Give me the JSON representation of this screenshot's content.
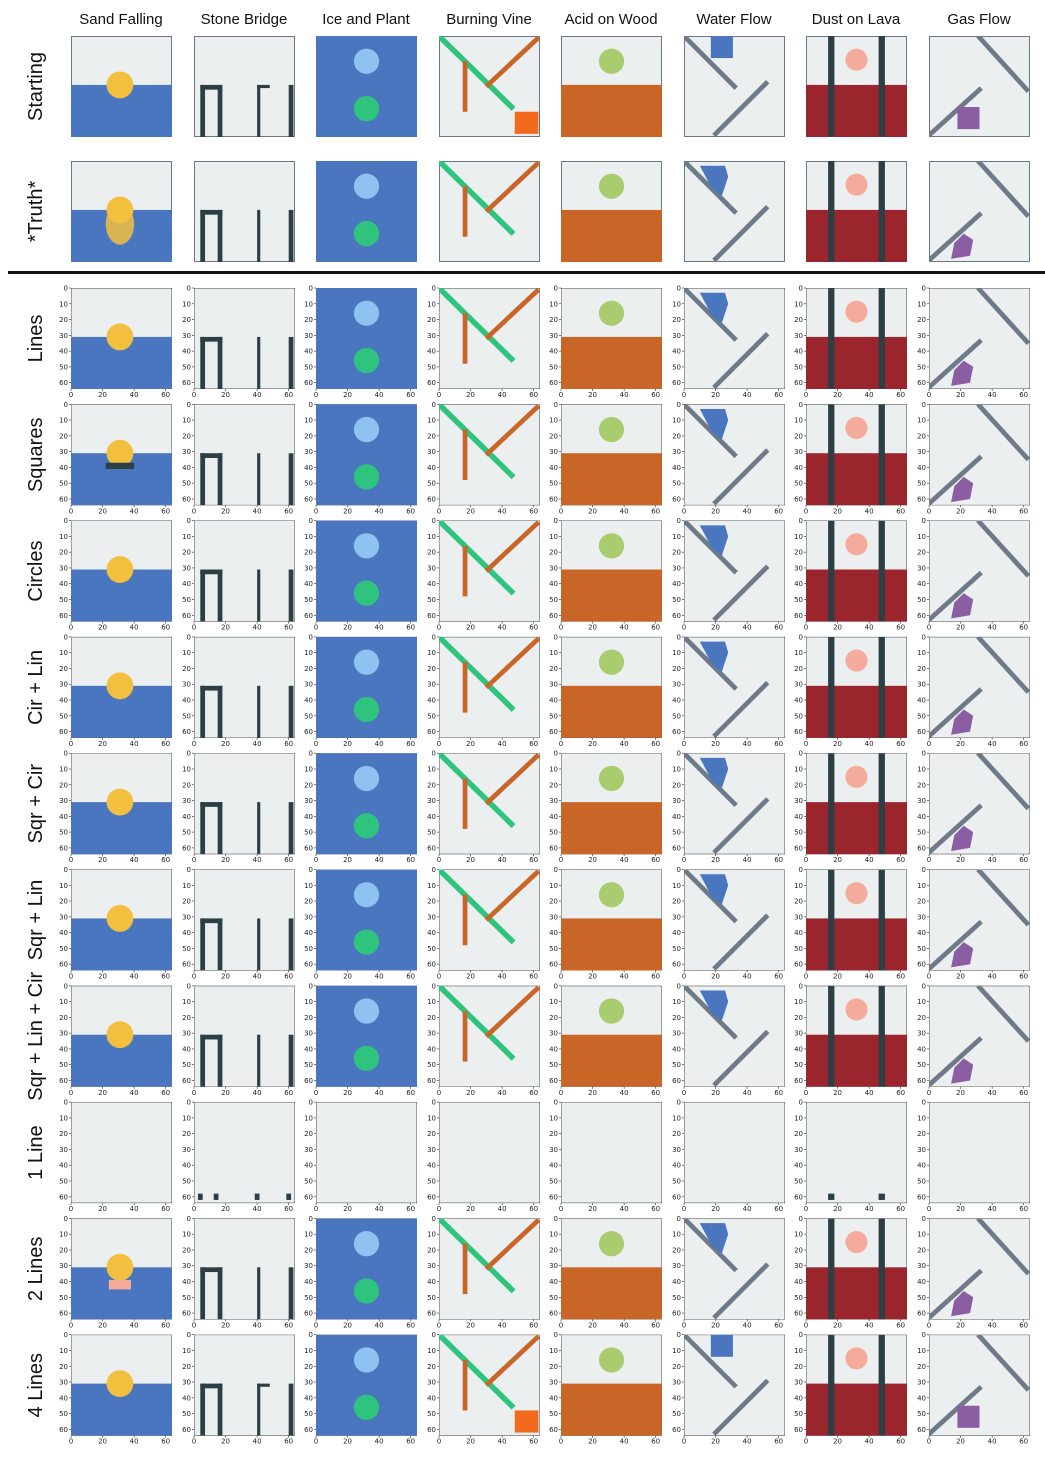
{
  "chart_data": {
    "type": "image-grid",
    "columns": [
      "Sand Falling",
      "Stone Bridge",
      "Ice and Plant",
      "Burning Vine",
      "Acid on Wood",
      "Water Flow",
      "Dust on Lava",
      "Gas Flow"
    ],
    "reference_rows": [
      "Starting",
      "*Truth*"
    ],
    "model_rows": [
      "Lines",
      "Squares",
      "Circles",
      "Cir + Lin",
      "Sqr + Cir",
      "Sqr + Lin",
      "Sqr + Lin + Cir",
      "1 Line",
      "2 Lines",
      "4 Lines"
    ],
    "x_ticks": [
      "0",
      "20",
      "40",
      "60"
    ],
    "y_ticks": [
      "0",
      "10",
      "20",
      "30",
      "40",
      "50",
      "60"
    ],
    "grid_size": 64,
    "colors": {
      "background": "#eceff0",
      "water": "#4a76bf",
      "sand": "#f2bf3e",
      "stone": "#2b3f45",
      "ice": "#8ec2f0",
      "plant": "#2ec47e",
      "wood": "#c96527",
      "fire": "#f26a1b",
      "acid": "#a8cc6e",
      "metal": "#6e7a88",
      "dust": "#f5ab9b",
      "lava": "#9a252c",
      "gas": "#8b5ea4",
      "frame": "#6b7785"
    }
  }
}
